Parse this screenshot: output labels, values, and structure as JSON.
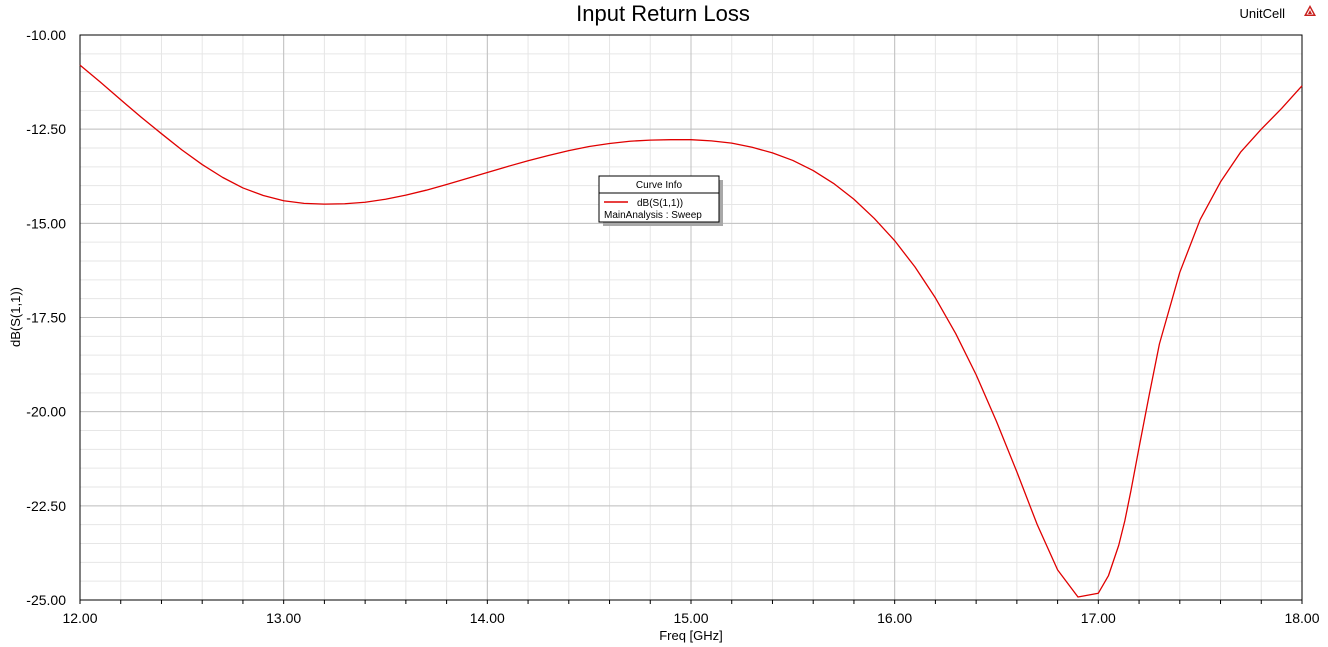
{
  "header": {
    "project_name": "UnitCell",
    "logo_icon": "ansys-logo-icon"
  },
  "chart_data": {
    "type": "line",
    "title": "Input Return Loss",
    "xlabel": "Freq [GHz]",
    "ylabel": "dB(S(1,1))",
    "xlim": [
      12.0,
      18.0
    ],
    "ylim": [
      -25.0,
      -10.0
    ],
    "x_ticks": [
      "12.00",
      "13.00",
      "14.00",
      "15.00",
      "16.00",
      "17.00",
      "18.00"
    ],
    "y_ticks": [
      "-10.00",
      "-12.50",
      "-15.00",
      "-17.50",
      "-20.00",
      "-22.50",
      "-25.00"
    ],
    "grid": true,
    "legend": {
      "title": "Curve Info",
      "placement": "center",
      "entries": [
        {
          "name": "dB(S(1,1))",
          "subtitle": "MainAnalysis : Sweep",
          "color": "#e00000"
        }
      ]
    },
    "series": [
      {
        "name": "dB(S(1,1))",
        "color": "#e00000",
        "x": [
          12.0,
          12.1,
          12.2,
          12.3,
          12.4,
          12.5,
          12.6,
          12.7,
          12.8,
          12.9,
          13.0,
          13.1,
          13.2,
          13.3,
          13.4,
          13.5,
          13.6,
          13.7,
          13.8,
          13.9,
          14.0,
          14.1,
          14.2,
          14.3,
          14.4,
          14.5,
          14.6,
          14.7,
          14.8,
          14.9,
          15.0,
          15.1,
          15.2,
          15.3,
          15.4,
          15.5,
          15.6,
          15.7,
          15.8,
          15.9,
          16.0,
          16.1,
          16.2,
          16.3,
          16.4,
          16.5,
          16.6,
          16.7,
          16.8,
          16.9,
          17.0,
          17.05,
          17.1,
          17.13,
          17.16,
          17.2,
          17.25,
          17.3,
          17.4,
          17.5,
          17.6,
          17.7,
          17.8,
          17.9,
          18.0
        ],
        "values": [
          -10.8,
          -11.25,
          -11.72,
          -12.18,
          -12.62,
          -13.05,
          -13.44,
          -13.78,
          -14.06,
          -14.26,
          -14.4,
          -14.47,
          -14.49,
          -14.48,
          -14.44,
          -14.36,
          -14.25,
          -14.12,
          -13.97,
          -13.81,
          -13.65,
          -13.49,
          -13.34,
          -13.2,
          -13.07,
          -12.96,
          -12.88,
          -12.82,
          -12.79,
          -12.78,
          -12.78,
          -12.81,
          -12.87,
          -12.98,
          -13.13,
          -13.33,
          -13.6,
          -13.94,
          -14.36,
          -14.87,
          -15.46,
          -16.16,
          -16.98,
          -17.93,
          -19.02,
          -20.26,
          -21.6,
          -23.0,
          -24.2,
          -24.92,
          -24.82,
          -24.35,
          -23.55,
          -22.9,
          -22.1,
          -20.95,
          -19.55,
          -18.2,
          -16.3,
          -14.9,
          -13.9,
          -13.1,
          -12.5,
          -11.95,
          -11.35
        ]
      }
    ]
  }
}
